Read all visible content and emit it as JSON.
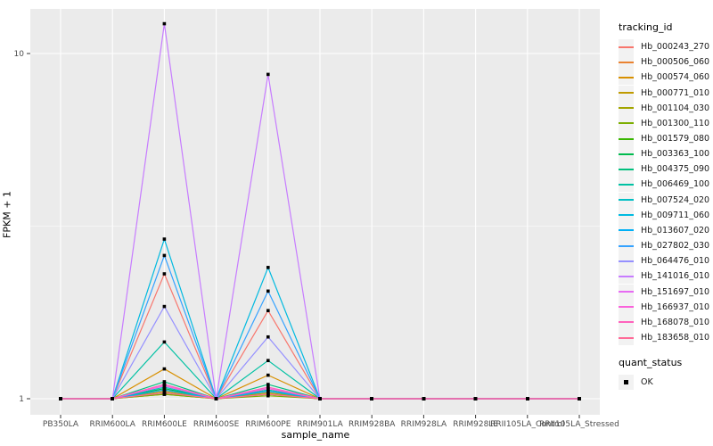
{
  "figure": {
    "background": "#FFFFFF",
    "panel_background": "#EBEBEB",
    "grid_color": "#FFFFFF",
    "tick_mark_color": "#333333",
    "tick_label_color": "#4D4D4D"
  },
  "y_axis": {
    "title": "FPKM + 1",
    "tick_labels": [
      "10",
      "1"
    ],
    "tick_values": [
      10,
      1
    ]
  },
  "x_axis": {
    "title": "sample_name"
  },
  "legend": {
    "tracking": {
      "title": "tracking_id"
    },
    "quant": {
      "title": "quant_status",
      "items": [
        {
          "label": "OK",
          "marker": "black-square",
          "color": "#000000"
        }
      ]
    }
  },
  "chart_data": {
    "type": "line",
    "title": "",
    "xlabel": "sample_name",
    "ylabel": "FPKM + 1",
    "y_scale": "log10",
    "ylim": [
      0.9,
      13.5
    ],
    "y_major_ticks": [
      1,
      10
    ],
    "y_minor_ticks": [
      3.1623
    ],
    "grid": true,
    "legend_position": "right",
    "point_marker": {
      "shape": "square",
      "color": "#000000",
      "status_label": "OK"
    },
    "x_categories": [
      "PB350LA",
      "RRIM600LA",
      "RRIM600LE",
      "RRIM600SE",
      "RRIM600PE",
      "RRIM901LA",
      "RRIM928BA",
      "RRIM928LA",
      "RRIM928LE",
      "RRII105LA_Control",
      "RRII105LA_Stressed"
    ],
    "series": [
      {
        "name": "Hb_000243_270",
        "color": "#F8766D",
        "values": [
          1,
          1,
          2.3,
          1,
          1.8,
          1,
          1,
          1,
          1,
          1,
          1
        ]
      },
      {
        "name": "Hb_000506_060",
        "color": "#EA8331",
        "values": [
          1,
          1,
          1.06,
          1,
          1.05,
          1,
          1,
          1,
          1,
          1,
          1
        ]
      },
      {
        "name": "Hb_000574_060",
        "color": "#D89000",
        "values": [
          1,
          1,
          1.22,
          1,
          1.17,
          1,
          1,
          1,
          1,
          1,
          1
        ]
      },
      {
        "name": "Hb_000771_010",
        "color": "#C09B00",
        "values": [
          1,
          1,
          1.05,
          1,
          1.04,
          1,
          1,
          1,
          1,
          1,
          1
        ]
      },
      {
        "name": "Hb_001104_030",
        "color": "#A3A500",
        "values": [
          1,
          1,
          1.03,
          1,
          1.03,
          1,
          1,
          1,
          1,
          1,
          1
        ]
      },
      {
        "name": "Hb_001300_110",
        "color": "#7CAE00",
        "values": [
          1,
          1,
          1.03,
          1,
          1.02,
          1,
          1,
          1,
          1,
          1,
          1
        ]
      },
      {
        "name": "Hb_001579_080",
        "color": "#39B600",
        "values": [
          1,
          1,
          1.04,
          1,
          1.03,
          1,
          1,
          1,
          1,
          1,
          1
        ]
      },
      {
        "name": "Hb_003363_100",
        "color": "#00BB4E",
        "values": [
          1,
          1,
          1.07,
          1,
          1.06,
          1,
          1,
          1,
          1,
          1,
          1
        ]
      },
      {
        "name": "Hb_004375_090",
        "color": "#00BF7D",
        "values": [
          1,
          1,
          1.12,
          1,
          1.1,
          1,
          1,
          1,
          1,
          1,
          1
        ]
      },
      {
        "name": "Hb_006469_100",
        "color": "#00C1A3",
        "values": [
          1,
          1,
          1.46,
          1,
          1.29,
          1,
          1,
          1,
          1,
          1,
          1
        ]
      },
      {
        "name": "Hb_007524_020",
        "color": "#00BFC4",
        "values": [
          1,
          1,
          1.08,
          1,
          1.06,
          1,
          1,
          1,
          1,
          1,
          1
        ]
      },
      {
        "name": "Hb_009711_060",
        "color": "#00BAE0",
        "values": [
          1,
          1,
          2.9,
          1,
          2.4,
          1,
          1,
          1,
          1,
          1,
          1
        ]
      },
      {
        "name": "Hb_013607_020",
        "color": "#00B0F6",
        "values": [
          1,
          1,
          1.06,
          1,
          1.05,
          1,
          1,
          1,
          1,
          1,
          1
        ]
      },
      {
        "name": "Hb_027802_030",
        "color": "#35A2FF",
        "values": [
          1,
          1,
          2.6,
          1,
          2.05,
          1,
          1,
          1,
          1,
          1,
          1
        ]
      },
      {
        "name": "Hb_064476_010",
        "color": "#9590FF",
        "values": [
          1,
          1,
          1.85,
          1,
          1.51,
          1,
          1,
          1,
          1,
          1,
          1
        ]
      },
      {
        "name": "Hb_141016_010",
        "color": "#C77CFF",
        "values": [
          1,
          1,
          12.2,
          1,
          8.7,
          1,
          1,
          1,
          1,
          1,
          1
        ]
      },
      {
        "name": "Hb_151697_010",
        "color": "#E76BF3",
        "values": [
          1,
          1,
          1.1,
          1,
          1.08,
          1,
          1,
          1,
          1,
          1,
          1
        ]
      },
      {
        "name": "Hb_166937_010",
        "color": "#FA62DB",
        "values": [
          1,
          1,
          1.09,
          1,
          1.07,
          1,
          1,
          1,
          1,
          1,
          1
        ]
      },
      {
        "name": "Hb_168078_010",
        "color": "#FF62BC",
        "values": [
          1,
          1,
          1.1,
          1,
          1.08,
          1,
          1,
          1,
          1,
          1,
          1
        ]
      },
      {
        "name": "Hb_183658_010",
        "color": "#FF6A98",
        "values": [
          1,
          1,
          1.04,
          1,
          1.03,
          1,
          1,
          1,
          1,
          1,
          1
        ]
      }
    ]
  }
}
